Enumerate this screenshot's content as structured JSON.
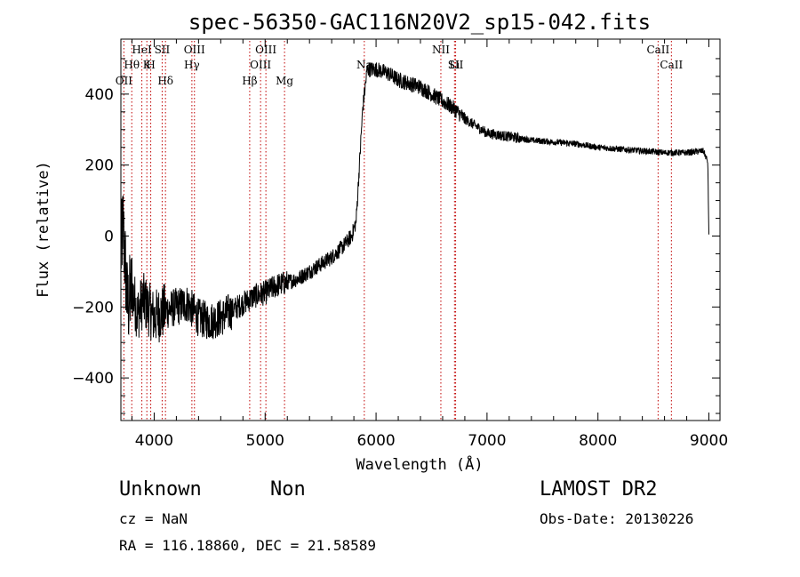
{
  "chart_data": {
    "type": "line",
    "title": "spec-56350-GAC116N20V2_sp15-042.fits",
    "xlabel": "Wavelength (Å)",
    "ylabel": "Flux (relative)",
    "xlim": [
      3700,
      9100
    ],
    "ylim": [
      -520,
      555
    ],
    "xticks": [
      4000,
      5000,
      6000,
      7000,
      8000,
      9000
    ],
    "yticks": [
      -400,
      -200,
      0,
      200,
      400
    ],
    "spectrum_anchors": [
      {
        "x": 3700,
        "y": -50
      },
      {
        "x": 3720,
        "y": 30
      },
      {
        "x": 3760,
        "y": -200
      },
      {
        "x": 3800,
        "y": -150
      },
      {
        "x": 3850,
        "y": -220
      },
      {
        "x": 3900,
        "y": -180
      },
      {
        "x": 4000,
        "y": -230
      },
      {
        "x": 4100,
        "y": -210
      },
      {
        "x": 4200,
        "y": -200
      },
      {
        "x": 4300,
        "y": -190
      },
      {
        "x": 4400,
        "y": -230
      },
      {
        "x": 4500,
        "y": -240
      },
      {
        "x": 4600,
        "y": -230
      },
      {
        "x": 4700,
        "y": -210
      },
      {
        "x": 4800,
        "y": -190
      },
      {
        "x": 4900,
        "y": -170
      },
      {
        "x": 5000,
        "y": -160
      },
      {
        "x": 5100,
        "y": -140
      },
      {
        "x": 5200,
        "y": -130
      },
      {
        "x": 5300,
        "y": -120
      },
      {
        "x": 5400,
        "y": -100
      },
      {
        "x": 5500,
        "y": -80
      },
      {
        "x": 5600,
        "y": -60
      },
      {
        "x": 5700,
        "y": -30
      },
      {
        "x": 5780,
        "y": 0
      },
      {
        "x": 5820,
        "y": 40
      },
      {
        "x": 5850,
        "y": 200
      },
      {
        "x": 5880,
        "y": 360
      },
      {
        "x": 5920,
        "y": 470
      },
      {
        "x": 6000,
        "y": 470
      },
      {
        "x": 6100,
        "y": 460
      },
      {
        "x": 6200,
        "y": 440
      },
      {
        "x": 6300,
        "y": 430
      },
      {
        "x": 6400,
        "y": 420
      },
      {
        "x": 6500,
        "y": 400
      },
      {
        "x": 6600,
        "y": 380
      },
      {
        "x": 6700,
        "y": 360
      },
      {
        "x": 6800,
        "y": 330
      },
      {
        "x": 6900,
        "y": 310
      },
      {
        "x": 7000,
        "y": 290
      },
      {
        "x": 7200,
        "y": 280
      },
      {
        "x": 7400,
        "y": 270
      },
      {
        "x": 7600,
        "y": 265
      },
      {
        "x": 7800,
        "y": 260
      },
      {
        "x": 8000,
        "y": 250
      },
      {
        "x": 8200,
        "y": 245
      },
      {
        "x": 8400,
        "y": 240
      },
      {
        "x": 8600,
        "y": 235
      },
      {
        "x": 8800,
        "y": 235
      },
      {
        "x": 8950,
        "y": 240
      },
      {
        "x": 8990,
        "y": 210
      },
      {
        "x": 9000,
        "y": 0
      }
    ],
    "emission_lines": [
      {
        "label": "OII",
        "x": 3727,
        "row": 3
      },
      {
        "label": "Hθ",
        "x": 3798,
        "row": 2
      },
      {
        "label": "HeI",
        "x": 3889,
        "row": 0
      },
      {
        "label": "K",
        "x": 3934,
        "row": 1
      },
      {
        "label": "H",
        "x": 3969,
        "row": 1
      },
      {
        "label": "SII",
        "x": 4072,
        "row": 0
      },
      {
        "label": "Hδ",
        "x": 4102,
        "row": 3
      },
      {
        "label": "OIII",
        "x": 4363,
        "row": 0
      },
      {
        "label": "Hγ",
        "x": 4340,
        "row": 2
      },
      {
        "label": "Hβ",
        "x": 4861,
        "row": 3
      },
      {
        "label": "OIII",
        "x": 4959,
        "row": 2
      },
      {
        "label": "OIII",
        "x": 5007,
        "row": 0
      },
      {
        "label": "Mg",
        "x": 5175,
        "row": 3
      },
      {
        "label": "Na",
        "x": 5894,
        "row": 1
      },
      {
        "label": "NII",
        "x": 6584,
        "row": 0
      },
      {
        "label": "SII",
        "x": 6717,
        "row": 1
      },
      {
        "label": "Li",
        "x": 6707,
        "row": 2
      },
      {
        "label": "CaII",
        "x": 8542,
        "row": 0
      },
      {
        "label": "CaII",
        "x": 8662,
        "row": 2
      }
    ],
    "line_color": "#000000",
    "marker_color": "#c00000"
  },
  "info": {
    "class": "Unknown",
    "subclass": "Non",
    "survey": "LAMOST DR2",
    "cz": "cz = NaN",
    "obs_date": "Obs-Date: 20130226",
    "coords": "RA = 116.18860, DEC =  21.58589"
  }
}
